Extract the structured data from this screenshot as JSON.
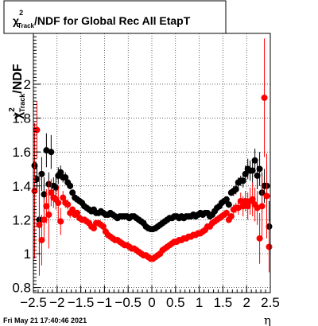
{
  "chart_data": {
    "type": "scatter",
    "title": {
      "main": "χ",
      "sup": "2",
      "sub": "Track",
      "rest": "/NDF for Global Rec All EtapT"
    },
    "ylabel": {
      "main": "χ",
      "sup": "2",
      "sub": "Track",
      "rest": "/NDF"
    },
    "xlabel": "η",
    "xlim": [
      -2.5,
      2.5
    ],
    "ylim": [
      0.77,
      2.3
    ],
    "xticks": [
      -2.5,
      -2,
      -1.5,
      -1,
      -0.5,
      0,
      0.5,
      1,
      1.5,
      2,
      2.5
    ],
    "xtick_labels": [
      "−2.5",
      "−2",
      "−1.5",
      "−1",
      "−0.5",
      "0",
      "0.5",
      "1",
      "1.5",
      "2",
      "2.5"
    ],
    "yticks": [
      0.8,
      1,
      1.2,
      1.4,
      1.6,
      1.8,
      2
    ],
    "ytick_labels": [
      "0.8",
      "1",
      "1.2",
      "1.4",
      "1.6",
      "1.8",
      "2"
    ],
    "grid": true,
    "series": [
      {
        "color": "#000000",
        "points": [
          [
            -2.475,
            1.52,
            0.08
          ],
          [
            -2.425,
            1.44,
            0.08
          ],
          [
            -2.375,
            1.2,
            0.2
          ],
          [
            -2.325,
            1.47,
            0.1
          ],
          [
            -2.275,
            1.35,
            0.1
          ],
          [
            -2.225,
            1.61,
            0.1
          ],
          [
            -2.175,
            1.41,
            0.07
          ],
          [
            -2.125,
            1.6,
            0.1
          ],
          [
            -2.075,
            1.4,
            0.05
          ],
          [
            -2.025,
            1.39,
            0.06
          ],
          [
            -1.975,
            1.46,
            0.05
          ],
          [
            -1.925,
            1.48,
            0.04
          ],
          [
            -1.875,
            1.45,
            0.03
          ],
          [
            -1.825,
            1.45,
            0.03
          ],
          [
            -1.775,
            1.42,
            0.03
          ],
          [
            -1.725,
            1.4,
            0.02
          ],
          [
            -1.675,
            1.36,
            0.01
          ],
          [
            -1.625,
            1.33,
            0.01
          ],
          [
            -1.575,
            1.32,
            0.01
          ],
          [
            -1.525,
            1.31,
            0.01
          ],
          [
            -1.475,
            1.3,
            0.01
          ],
          [
            -1.425,
            1.28,
            0.01
          ],
          [
            -1.375,
            1.27,
            0.01
          ],
          [
            -1.325,
            1.26,
            0.01
          ],
          [
            -1.275,
            1.25,
            0.01
          ],
          [
            -1.225,
            1.26,
            0.01
          ],
          [
            -1.175,
            1.24,
            0.01
          ],
          [
            -1.125,
            1.24,
            0.01
          ],
          [
            -1.075,
            1.25,
            0.01
          ],
          [
            -1.025,
            1.24,
            0.01
          ],
          [
            -0.975,
            1.23,
            0.01
          ],
          [
            -0.925,
            1.23,
            0.01
          ],
          [
            -0.875,
            1.24,
            0.01
          ],
          [
            -0.825,
            1.23,
            0.01
          ],
          [
            -0.775,
            1.22,
            0.01
          ],
          [
            -0.725,
            1.21,
            0.01
          ],
          [
            -0.675,
            1.22,
            0.01
          ],
          [
            -0.625,
            1.22,
            0.01
          ],
          [
            -0.575,
            1.22,
            0.01
          ],
          [
            -0.525,
            1.22,
            0.01
          ],
          [
            -0.475,
            1.21,
            0.01
          ],
          [
            -0.425,
            1.22,
            0.01
          ],
          [
            -0.375,
            1.22,
            0.01
          ],
          [
            -0.325,
            1.21,
            0.01
          ],
          [
            -0.275,
            1.2,
            0.01
          ],
          [
            -0.225,
            1.19,
            0.01
          ],
          [
            -0.175,
            1.18,
            0.01
          ],
          [
            -0.125,
            1.16,
            0.01
          ],
          [
            -0.075,
            1.15,
            0.01
          ],
          [
            -0.025,
            1.145,
            0.01
          ],
          [
            0.025,
            1.145,
            0.01
          ],
          [
            0.075,
            1.15,
            0.01
          ],
          [
            0.125,
            1.16,
            0.01
          ],
          [
            0.175,
            1.17,
            0.01
          ],
          [
            0.225,
            1.18,
            0.01
          ],
          [
            0.275,
            1.19,
            0.01
          ],
          [
            0.325,
            1.2,
            0.01
          ],
          [
            0.375,
            1.21,
            0.01
          ],
          [
            0.425,
            1.21,
            0.01
          ],
          [
            0.475,
            1.22,
            0.01
          ],
          [
            0.525,
            1.22,
            0.01
          ],
          [
            0.575,
            1.21,
            0.01
          ],
          [
            0.625,
            1.22,
            0.01
          ],
          [
            0.675,
            1.21,
            0.01
          ],
          [
            0.725,
            1.22,
            0.01
          ],
          [
            0.775,
            1.22,
            0.01
          ],
          [
            0.825,
            1.22,
            0.01
          ],
          [
            0.875,
            1.23,
            0.01
          ],
          [
            0.925,
            1.22,
            0.01
          ],
          [
            0.975,
            1.23,
            0.01
          ],
          [
            1.025,
            1.24,
            0.01
          ],
          [
            1.075,
            1.23,
            0.01
          ],
          [
            1.125,
            1.24,
            0.01
          ],
          [
            1.175,
            1.24,
            0.01
          ],
          [
            1.225,
            1.22,
            0.01
          ],
          [
            1.275,
            1.23,
            0.01
          ],
          [
            1.325,
            1.25,
            0.01
          ],
          [
            1.375,
            1.27,
            0.01
          ],
          [
            1.425,
            1.28,
            0.01
          ],
          [
            1.475,
            1.3,
            0.01
          ],
          [
            1.525,
            1.31,
            0.01
          ],
          [
            1.575,
            1.32,
            0.01
          ],
          [
            1.625,
            1.29,
            0.02
          ],
          [
            1.675,
            1.36,
            0.02
          ],
          [
            1.725,
            1.37,
            0.03
          ],
          [
            1.775,
            1.38,
            0.03
          ],
          [
            1.825,
            1.42,
            0.03
          ],
          [
            1.875,
            1.43,
            0.03
          ],
          [
            1.925,
            1.43,
            0.04
          ],
          [
            1.975,
            1.47,
            0.05
          ],
          [
            2.025,
            1.5,
            0.06
          ],
          [
            2.075,
            1.49,
            0.06
          ],
          [
            2.125,
            1.49,
            0.07
          ],
          [
            2.175,
            1.55,
            0.07
          ],
          [
            2.225,
            1.46,
            0.08
          ],
          [
            2.275,
            1.5,
            0.1
          ],
          [
            2.325,
            1.36,
            0.12
          ],
          [
            2.375,
            1.4,
            0.1
          ],
          [
            2.425,
            1.4,
            0.12
          ],
          [
            2.475,
            1.16,
            0.15
          ]
        ]
      },
      {
        "color": "#ff0000",
        "points": [
          [
            -2.475,
            1.37,
            0.4
          ],
          [
            -2.425,
            1.73,
            0.17
          ],
          [
            -2.375,
            1.17,
            0.3
          ],
          [
            -2.325,
            1.08,
            0.15
          ],
          [
            -2.275,
            1.2,
            0.12
          ],
          [
            -2.225,
            1.28,
            0.1
          ],
          [
            -2.175,
            1.23,
            0.2
          ],
          [
            -2.125,
            1.36,
            0.08
          ],
          [
            -2.075,
            1.33,
            0.06
          ],
          [
            -2.025,
            1.32,
            0.06
          ],
          [
            -1.975,
            1.3,
            0.1
          ],
          [
            -1.925,
            1.19,
            0.08
          ],
          [
            -1.875,
            1.33,
            0.04
          ],
          [
            -1.825,
            1.3,
            0.03
          ],
          [
            -1.775,
            1.29,
            0.03
          ],
          [
            -1.725,
            1.24,
            0.03
          ],
          [
            -1.675,
            1.26,
            0.02
          ],
          [
            -1.625,
            1.23,
            0.02
          ],
          [
            -1.575,
            1.24,
            0.02
          ],
          [
            -1.525,
            1.21,
            0.01
          ],
          [
            -1.475,
            1.2,
            0.01
          ],
          [
            -1.425,
            1.2,
            0.01
          ],
          [
            -1.375,
            1.19,
            0.01
          ],
          [
            -1.325,
            1.18,
            0.01
          ],
          [
            -1.275,
            1.16,
            0.01
          ],
          [
            -1.225,
            1.15,
            0.01
          ],
          [
            -1.175,
            1.18,
            0.01
          ],
          [
            -1.125,
            1.18,
            0.01
          ],
          [
            -1.075,
            1.17,
            0.01
          ],
          [
            -1.025,
            1.16,
            0.01
          ],
          [
            -0.975,
            1.13,
            0.01
          ],
          [
            -0.925,
            1.11,
            0.01
          ],
          [
            -0.875,
            1.1,
            0.01
          ],
          [
            -0.825,
            1.09,
            0.01
          ],
          [
            -0.775,
            1.08,
            0.01
          ],
          [
            -0.725,
            1.08,
            0.01
          ],
          [
            -0.675,
            1.07,
            0.01
          ],
          [
            -0.625,
            1.06,
            0.01
          ],
          [
            -0.575,
            1.05,
            0.01
          ],
          [
            -0.525,
            1.05,
            0.01
          ],
          [
            -0.475,
            1.04,
            0.01
          ],
          [
            -0.425,
            1.03,
            0.01
          ],
          [
            -0.375,
            1.03,
            0.01
          ],
          [
            -0.325,
            1.02,
            0.01
          ],
          [
            -0.275,
            1.01,
            0.01
          ],
          [
            -0.225,
            1.0,
            0.01
          ],
          [
            -0.175,
            0.99,
            0.01
          ],
          [
            -0.125,
            0.99,
            0.01
          ],
          [
            -0.075,
            0.98,
            0.01
          ],
          [
            -0.025,
            0.97,
            0.01
          ],
          [
            0.025,
            0.97,
            0.01
          ],
          [
            0.075,
            0.98,
            0.01
          ],
          [
            0.125,
            0.99,
            0.01
          ],
          [
            0.175,
            1.0,
            0.01
          ],
          [
            0.225,
            1.02,
            0.01
          ],
          [
            0.275,
            1.03,
            0.01
          ],
          [
            0.325,
            1.04,
            0.01
          ],
          [
            0.375,
            1.05,
            0.01
          ],
          [
            0.425,
            1.06,
            0.01
          ],
          [
            0.475,
            1.07,
            0.01
          ],
          [
            0.525,
            1.07,
            0.01
          ],
          [
            0.575,
            1.08,
            0.01
          ],
          [
            0.625,
            1.08,
            0.01
          ],
          [
            0.675,
            1.09,
            0.01
          ],
          [
            0.725,
            1.09,
            0.01
          ],
          [
            0.775,
            1.1,
            0.01
          ],
          [
            0.825,
            1.1,
            0.01
          ],
          [
            0.875,
            1.11,
            0.01
          ],
          [
            0.925,
            1.11,
            0.01
          ],
          [
            0.975,
            1.12,
            0.01
          ],
          [
            1.025,
            1.12,
            0.01
          ],
          [
            1.075,
            1.13,
            0.01
          ],
          [
            1.125,
            1.14,
            0.01
          ],
          [
            1.175,
            1.16,
            0.01
          ],
          [
            1.225,
            1.16,
            0.01
          ],
          [
            1.275,
            1.18,
            0.01
          ],
          [
            1.325,
            1.19,
            0.01
          ],
          [
            1.375,
            1.2,
            0.01
          ],
          [
            1.425,
            1.21,
            0.01
          ],
          [
            1.475,
            1.22,
            0.01
          ],
          [
            1.525,
            1.23,
            0.01
          ],
          [
            1.575,
            1.24,
            0.02
          ],
          [
            1.625,
            1.2,
            0.02
          ],
          [
            1.675,
            1.22,
            0.02
          ],
          [
            1.725,
            1.26,
            0.03
          ],
          [
            1.775,
            1.27,
            0.03
          ],
          [
            1.825,
            1.27,
            0.04
          ],
          [
            1.875,
            1.31,
            0.05
          ],
          [
            1.925,
            1.28,
            0.06
          ],
          [
            1.975,
            1.31,
            0.06
          ],
          [
            2.025,
            1.28,
            0.08
          ],
          [
            2.075,
            1.31,
            0.08
          ],
          [
            2.125,
            1.32,
            0.1
          ],
          [
            2.175,
            1.29,
            0.1
          ],
          [
            2.225,
            1.27,
            0.1
          ],
          [
            2.275,
            1.09,
            0.15
          ],
          [
            2.325,
            1.28,
            0.18
          ],
          [
            2.375,
            1.92,
            0.35
          ],
          [
            2.425,
            1.34,
            0.25
          ],
          [
            2.475,
            1.04,
            0.15
          ]
        ]
      }
    ]
  },
  "footer": {
    "timestamp": "Fri May 21 17:40:46 2021"
  }
}
